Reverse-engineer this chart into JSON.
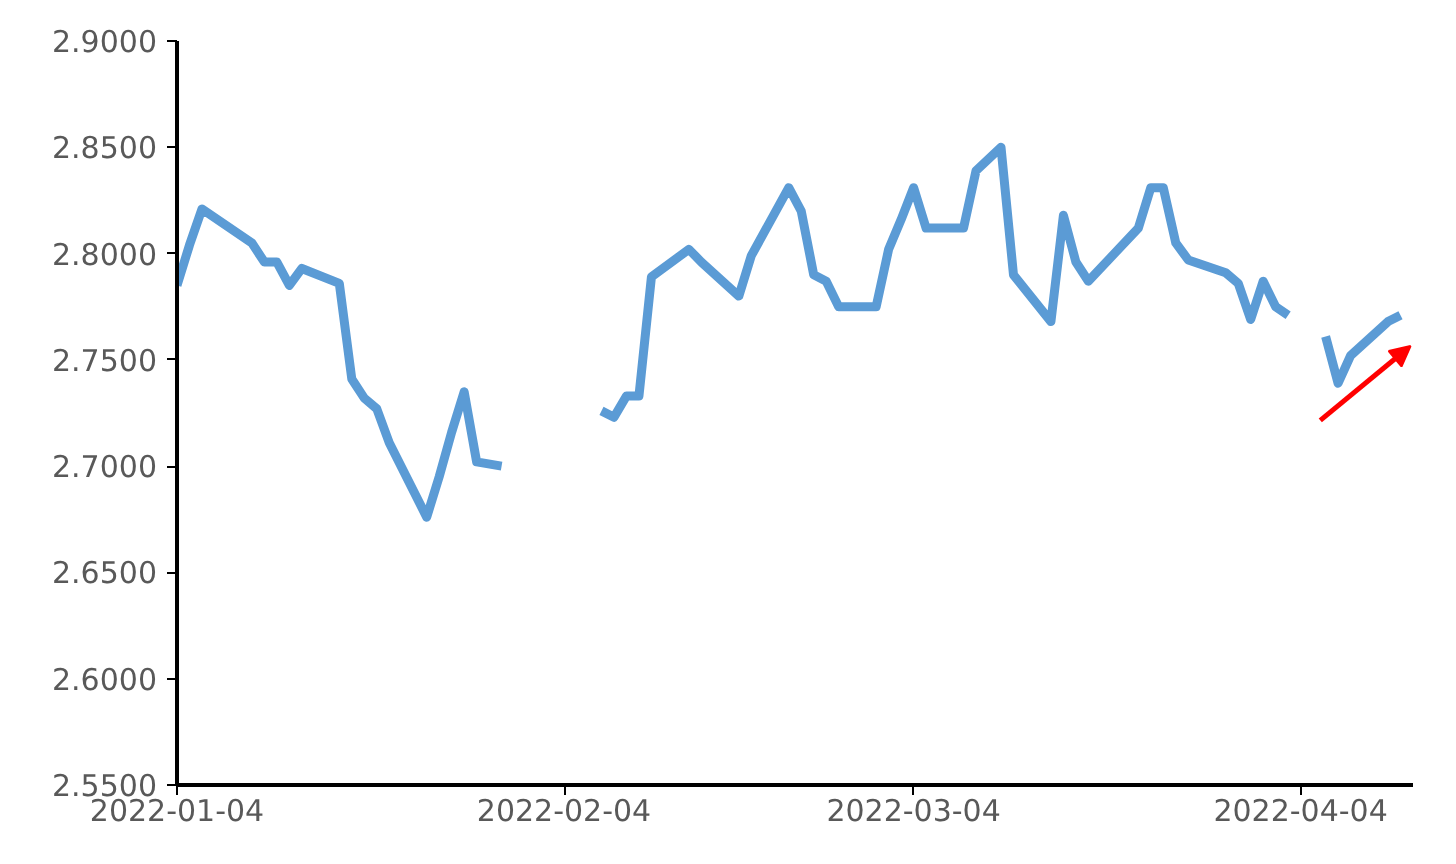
{
  "chart_data": {
    "type": "line",
    "x": [
      "2022-01-04",
      "2022-01-05",
      "2022-01-06",
      "2022-01-10",
      "2022-01-11",
      "2022-01-12",
      "2022-01-13",
      "2022-01-14",
      "2022-01-17",
      "2022-01-18",
      "2022-01-19",
      "2022-01-20",
      "2022-01-21",
      "2022-01-24",
      "2022-01-25",
      "2022-01-26",
      "2022-01-27",
      "2022-01-28",
      "2022-01-30",
      "2022-01-31",
      "2022-02-07",
      "2022-02-08",
      "2022-02-09",
      "2022-02-10",
      "2022-02-11",
      "2022-02-14",
      "2022-02-15",
      "2022-02-18",
      "2022-02-19",
      "2022-02-22",
      "2022-02-23",
      "2022-02-24",
      "2022-02-25",
      "2022-02-26",
      "2022-03-01",
      "2022-03-02",
      "2022-03-03",
      "2022-03-04",
      "2022-03-05",
      "2022-03-08",
      "2022-03-09",
      "2022-03-11",
      "2022-03-12",
      "2022-03-15",
      "2022-03-16",
      "2022-03-17",
      "2022-03-18",
      "2022-03-22",
      "2022-03-23",
      "2022-03-24",
      "2022-03-25",
      "2022-03-26",
      "2022-03-29",
      "2022-03-30",
      "2022-03-31",
      "2022-04-01",
      "2022-04-02",
      "2022-04-03",
      "2022-04-04",
      "2022-04-06",
      "2022-04-07",
      "2022-04-08",
      "2022-04-11",
      "2022-04-12"
    ],
    "series": [
      {
        "color": "#5b9bd5",
        "values": [
          2.785,
          2.804,
          2.821,
          2.805,
          2.796,
          2.796,
          2.785,
          2.793,
          2.786,
          2.741,
          2.732,
          2.727,
          2.711,
          2.676,
          2.695,
          2.716,
          2.735,
          2.702,
          2.7,
          null,
          2.726,
          2.723,
          2.733,
          2.733,
          2.789,
          2.802,
          2.796,
          2.78,
          2.799,
          2.831,
          2.82,
          2.79,
          2.787,
          2.775,
          2.775,
          2.802,
          2.816,
          2.831,
          2.812,
          2.812,
          2.839,
          2.85,
          2.79,
          2.768,
          2.818,
          2.796,
          2.787,
          2.812,
          2.831,
          2.831,
          2.805,
          2.797,
          2.791,
          2.786,
          2.769,
          2.787,
          2.775,
          2.771,
          null,
          2.761,
          2.739,
          2.752,
          2.768,
          2.771
        ]
      }
    ],
    "xlim": [
      "2022-01-04",
      "2022-04-13"
    ],
    "xticks": [
      "2022-01-04",
      "2022-02-04",
      "2022-03-04",
      "2022-04-04"
    ],
    "ylim": [
      2.55,
      2.9
    ],
    "yticks": [
      {
        "value": 2.55,
        "label": "2.5500"
      },
      {
        "value": 2.6,
        "label": "2.6000"
      },
      {
        "value": 2.65,
        "label": "2.6500"
      },
      {
        "value": 2.7,
        "label": "2.7000"
      },
      {
        "value": 2.75,
        "label": "2.7500"
      },
      {
        "value": 2.8,
        "label": "2.8000"
      },
      {
        "value": 2.85,
        "label": "2.8500"
      },
      {
        "value": 2.9,
        "label": "2.9000"
      }
    ],
    "grid": false,
    "line_style": "solid",
    "marker": "none"
  }
}
